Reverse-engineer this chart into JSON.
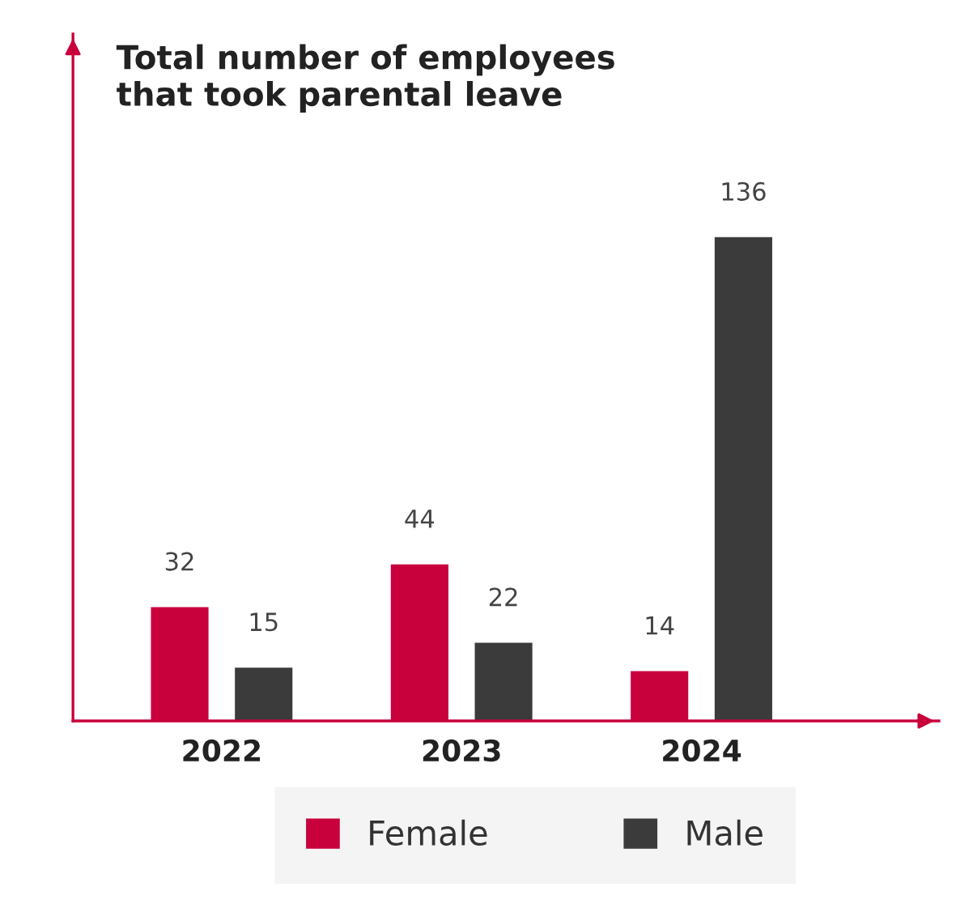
{
  "chart_data": {
    "type": "bar",
    "title": "Total number of employees\nthat took parental leave",
    "categories": [
      "2022",
      "2023",
      "2024"
    ],
    "series": [
      {
        "name": "Female",
        "color": "#c8003c",
        "values": [
          32,
          44,
          14
        ]
      },
      {
        "name": "Male",
        "color": "#3b3b3b",
        "values": [
          15,
          22,
          136
        ]
      }
    ],
    "data_labels": true,
    "legend": "bottom",
    "grid": false
  }
}
